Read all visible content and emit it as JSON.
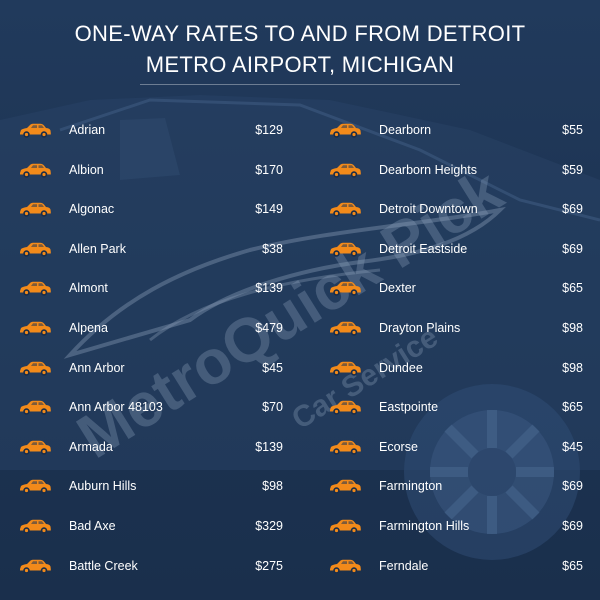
{
  "title_line1": "ONE-WAY RATES TO AND FROM DETROIT",
  "title_line2": "METRO AIRPORT, MICHIGAN",
  "watermark": {
    "brand": "MetroQuick Pick",
    "tagline": "Car Service"
  },
  "colors": {
    "background": "#1f3554",
    "text": "#ffffff",
    "car_icon": "#f28a1a"
  },
  "row_icon": "car-icon",
  "left_column": [
    {
      "city": "Adrian",
      "price": "$129"
    },
    {
      "city": "Albion",
      "price": "$170"
    },
    {
      "city": "Algonac",
      "price": "$149"
    },
    {
      "city": "Allen Park",
      "price": "$38"
    },
    {
      "city": "Almont",
      "price": "$139"
    },
    {
      "city": "Alpena",
      "price": "$479"
    },
    {
      "city": "Ann Arbor",
      "price": "$45"
    },
    {
      "city": "Ann Arbor 48103",
      "price": "$70"
    },
    {
      "city": "Armada",
      "price": "$139"
    },
    {
      "city": "Auburn Hills",
      "price": "$98"
    },
    {
      "city": "Bad Axe",
      "price": "$329"
    },
    {
      "city": "Battle Creek",
      "price": "$275"
    }
  ],
  "right_column": [
    {
      "city": "Dearborn",
      "price": "$55"
    },
    {
      "city": "Dearborn Heights",
      "price": "$59"
    },
    {
      "city": "Detroit Downtown",
      "price": "$69"
    },
    {
      "city": "Detroit Eastside",
      "price": "$69"
    },
    {
      "city": "Dexter",
      "price": "$65"
    },
    {
      "city": "Drayton Plains",
      "price": "$98"
    },
    {
      "city": "Dundee",
      "price": "$98"
    },
    {
      "city": "Eastpointe",
      "price": "$65"
    },
    {
      "city": "Ecorse",
      "price": "$45"
    },
    {
      "city": "Farmington",
      "price": "$69"
    },
    {
      "city": "Farmington Hills",
      "price": "$69"
    },
    {
      "city": "Ferndale",
      "price": "$65"
    }
  ]
}
